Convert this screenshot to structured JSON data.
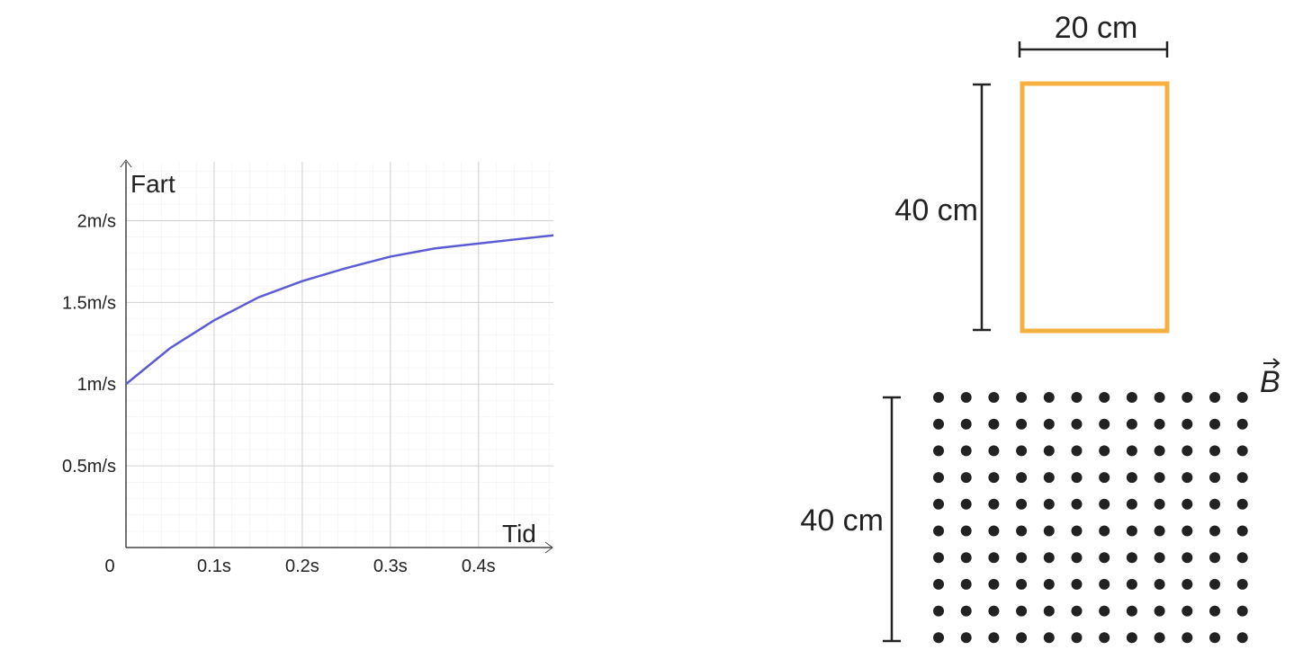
{
  "chart_data": {
    "type": "line",
    "x_label": "Tid",
    "y_label": "Fart",
    "x": [
      0,
      0.05,
      0.1,
      0.15,
      0.2,
      0.25,
      0.3,
      0.35,
      0.4,
      0.45,
      0.485
    ],
    "series": [
      {
        "name": "Fart",
        "color": "#5b5bd6",
        "values": [
          1,
          1.22,
          1.39,
          1.53,
          1.63,
          1.71,
          1.78,
          1.83,
          1.86,
          1.89,
          1.91
        ]
      }
    ],
    "xlim": [
      0,
      0.485
    ],
    "ylim": [
      0,
      2.36
    ],
    "xticks": [
      0,
      {
        "value": 0.1,
        "label": "0.1s"
      },
      {
        "value": 0.2,
        "label": "0.2s"
      },
      {
        "value": 0.3,
        "label": "0.3s"
      },
      {
        "value": 0.4,
        "label": "0.4s"
      }
    ],
    "yticks": [
      {
        "value": 0.5,
        "label": "0.5m/s"
      },
      {
        "value": 1,
        "label": "1m/s"
      },
      {
        "value": 1.5,
        "label": "1.5m/s"
      },
      {
        "value": 2,
        "label": "2m/s"
      }
    ],
    "grid": true
  },
  "diagram": {
    "width_label": "20 cm",
    "height_label": "40 cm",
    "field_height_label": "40 cm",
    "field_label": "B"
  }
}
